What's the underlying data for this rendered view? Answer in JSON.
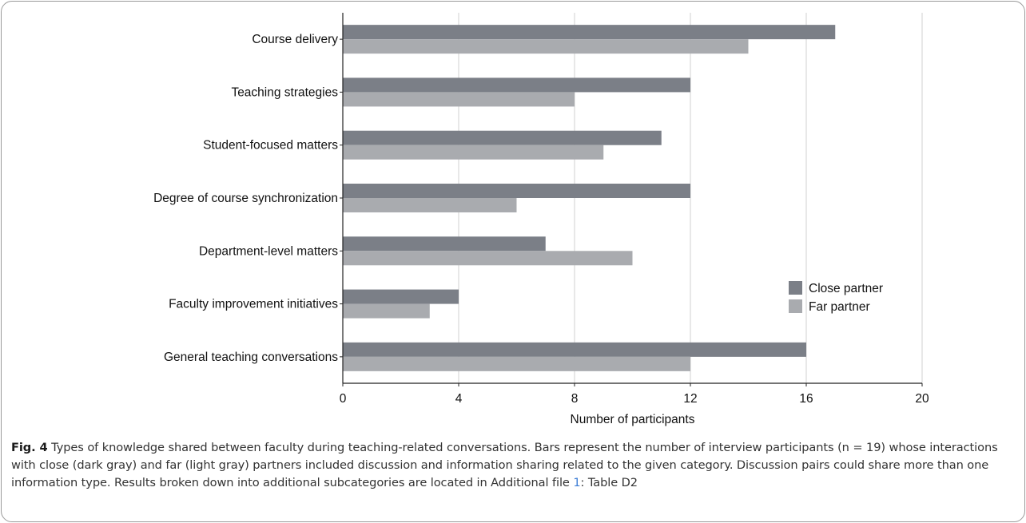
{
  "chart_data": {
    "type": "bar",
    "orientation": "horizontal",
    "categories": [
      "Course delivery",
      "Teaching strategies",
      "Student-focused matters",
      "Degree of course synchronization",
      "Department-level matters",
      "Faculty improvement initiatives",
      "General teaching conversations"
    ],
    "series": [
      {
        "name": "Close partner",
        "color": "#7b7f87",
        "values": [
          17,
          12,
          11,
          12,
          7,
          4,
          16
        ]
      },
      {
        "name": "Far partner",
        "color": "#a9abaf",
        "values": [
          14,
          8,
          9,
          6,
          10,
          3,
          12
        ]
      }
    ],
    "xlabel": "Number of participants",
    "ylabel": "",
    "xlim": [
      0,
      20
    ],
    "xticks": [
      "0",
      "4",
      "8",
      "12",
      "16",
      "20"
    ],
    "grid": "vertical",
    "legend": "right"
  },
  "caption": {
    "label": "Fig. 4",
    "text_before_link": "Types of knowledge shared between faculty during teaching-related conversations. Bars represent the number of interview participants (n = 19) whose interactions with close (dark gray) and far (light gray) partners included discussion and information sharing related to the given category. Discussion pairs could share more than one information type. Results broken down into additional subcategories are located in Additional file",
    "link_text": "1",
    "text_after_link": ": Table D2"
  }
}
